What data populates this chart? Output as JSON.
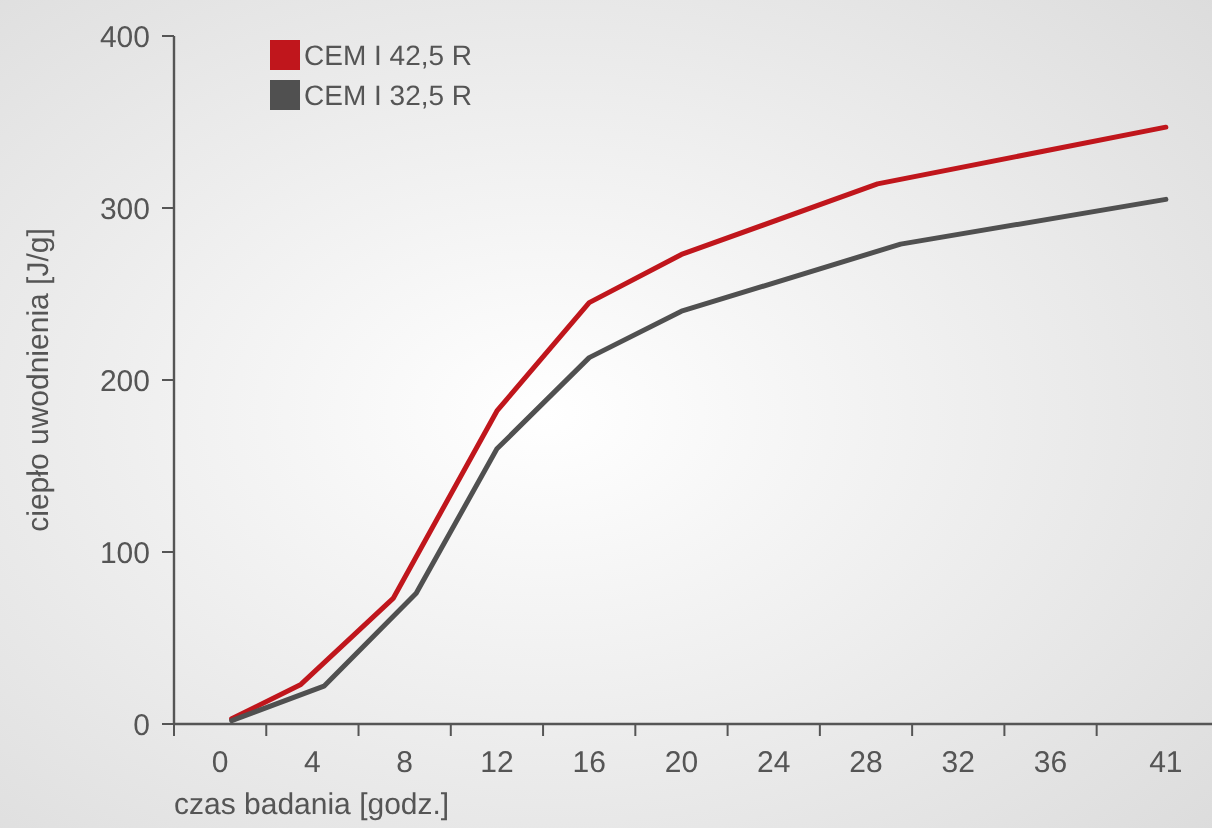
{
  "chart_data": {
    "type": "line",
    "xlabel": "czas badania [godz.]",
    "ylabel": "ciepło uwodnienia [J/g]",
    "xlim": [
      -2,
      43
    ],
    "xticks": [
      {
        "value": -2,
        "label": null
      },
      {
        "value": 0,
        "label": "0"
      },
      {
        "value": 2,
        "label": null
      },
      {
        "value": 4,
        "label": "4"
      },
      {
        "value": 6,
        "label": null
      },
      {
        "value": 8,
        "label": "8"
      },
      {
        "value": 10,
        "label": null
      },
      {
        "value": 12,
        "label": "12"
      },
      {
        "value": 14,
        "label": null
      },
      {
        "value": 16,
        "label": "16"
      },
      {
        "value": 18,
        "label": null
      },
      {
        "value": 20,
        "label": "20"
      },
      {
        "value": 22,
        "label": null
      },
      {
        "value": 24,
        "label": "24"
      },
      {
        "value": 26,
        "label": null
      },
      {
        "value": 28,
        "label": "28"
      },
      {
        "value": 30,
        "label": null
      },
      {
        "value": 32,
        "label": "32"
      },
      {
        "value": 34,
        "label": null
      },
      {
        "value": 36,
        "label": "36"
      },
      {
        "value": 38,
        "label": null
      },
      41
    ],
    "ylim": [
      0,
      400
    ],
    "yticks": [
      0,
      100,
      200,
      300,
      400
    ],
    "grid": false,
    "legend": "top left",
    "marker": "none",
    "line_style": "solid",
    "series": [
      {
        "name": "CEM I 42,5 R",
        "color": "#c0161c",
        "x": [
          0.5,
          3.5,
          7.5,
          12,
          16,
          20,
          28.5,
          41
        ],
        "values": [
          3,
          23,
          73,
          182,
          245,
          273,
          314,
          347
        ]
      },
      {
        "name": "CEM I 32,5 R",
        "color": "#505050",
        "x": [
          0.5,
          4.5,
          8.5,
          12,
          16,
          20,
          29.5,
          41
        ],
        "values": [
          2,
          22,
          76,
          160,
          213,
          240,
          279,
          305
        ]
      }
    ]
  }
}
